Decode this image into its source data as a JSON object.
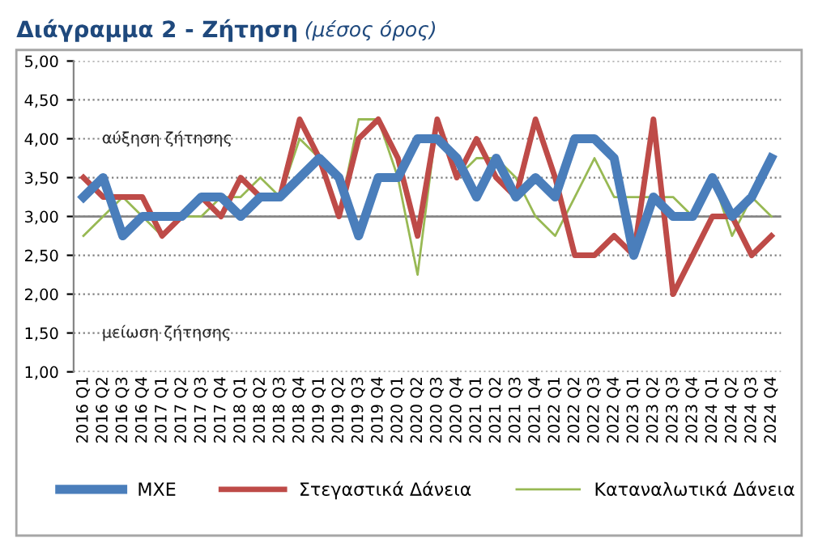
{
  "chart_data": {
    "type": "line",
    "title": "Διάγραμμα 2 - Ζήτηση",
    "subtitle": "(μέσος όρος)",
    "categories": [
      "2016 Q1",
      "2016 Q2",
      "2016 Q3",
      "2016 Q4",
      "2017 Q1",
      "2017 Q2",
      "2017 Q3",
      "2017 Q4",
      "2018 Q1",
      "2018 Q2",
      "2018 Q3",
      "2018 Q4",
      "2019 Q1",
      "2019 Q2",
      "2019 Q3",
      "2019 Q4",
      "2020 Q1",
      "2020 Q2",
      "2020 Q3",
      "2020 Q4",
      "2021 Q1",
      "2021 Q2",
      "2021 Q3",
      "2021 Q4",
      "2022 Q1",
      "2022 Q2",
      "2022 Q3",
      "2022 Q4",
      "2023 Q1",
      "2023 Q2",
      "2023 Q3",
      "2023 Q4",
      "2024 Q1",
      "2024 Q2",
      "2024 Q3",
      "2024 Q4"
    ],
    "series": [
      {
        "name": "ΜΧΕ",
        "color": "#4a7ebb",
        "values": [
          3.25,
          3.5,
          2.75,
          3.0,
          3.0,
          3.0,
          3.25,
          3.25,
          3.0,
          3.25,
          3.25,
          3.5,
          3.75,
          3.5,
          2.75,
          3.5,
          3.5,
          4.0,
          4.0,
          3.75,
          3.25,
          3.75,
          3.25,
          3.5,
          3.25,
          4.0,
          4.0,
          3.75,
          2.5,
          3.25,
          3.0,
          3.0,
          3.5,
          3.0,
          3.25,
          3.75
        ]
      },
      {
        "name": "Στεγαστικά Δάνεια",
        "color": "#be4b48",
        "values": [
          3.5,
          3.25,
          3.25,
          3.25,
          2.75,
          3.0,
          3.25,
          3.0,
          3.5,
          3.25,
          3.25,
          4.25,
          3.75,
          3.0,
          4.0,
          4.25,
          3.75,
          2.75,
          4.25,
          3.5,
          4.0,
          3.5,
          3.25,
          4.25,
          3.5,
          2.5,
          2.5,
          2.75,
          2.5,
          4.25,
          2.0,
          2.5,
          3.0,
          3.0,
          2.5,
          2.75
        ]
      },
      {
        "name": "Καταναλωτικά Δάνεια",
        "color": "#98b954",
        "values": [
          2.75,
          3.0,
          3.25,
          3.0,
          2.75,
          3.0,
          3.0,
          3.25,
          3.25,
          3.5,
          3.25,
          4.0,
          3.75,
          3.0,
          4.25,
          4.25,
          3.5,
          2.25,
          4.25,
          3.5,
          3.75,
          3.75,
          3.5,
          3.0,
          2.75,
          3.25,
          3.75,
          3.25,
          3.25,
          3.25,
          3.25,
          3.0,
          3.5,
          2.75,
          3.25,
          3.0
        ]
      }
    ],
    "annotations": [
      "αύξηση ζήτησης",
      "μείωση ζήτησης"
    ],
    "ylim": [
      1.0,
      5.0
    ],
    "yticks": [
      {
        "value": 1.0,
        "label": "1,00"
      },
      {
        "value": 1.5,
        "label": "1,50"
      },
      {
        "value": 2.0,
        "label": "2,00"
      },
      {
        "value": 2.5,
        "label": "2,50"
      },
      {
        "value": 3.0,
        "label": "3,00"
      },
      {
        "value": 3.5,
        "label": "3,50"
      },
      {
        "value": 4.0,
        "label": "4,00"
      },
      {
        "value": 4.5,
        "label": "4,50"
      },
      {
        "value": 5.0,
        "label": "5,00"
      }
    ],
    "ref_lines": [
      {
        "axis": "y",
        "value": 3.0,
        "color": "#868686"
      }
    ],
    "grid": "y",
    "legend": "bottom",
    "marker": "none",
    "line_style": "solid"
  }
}
